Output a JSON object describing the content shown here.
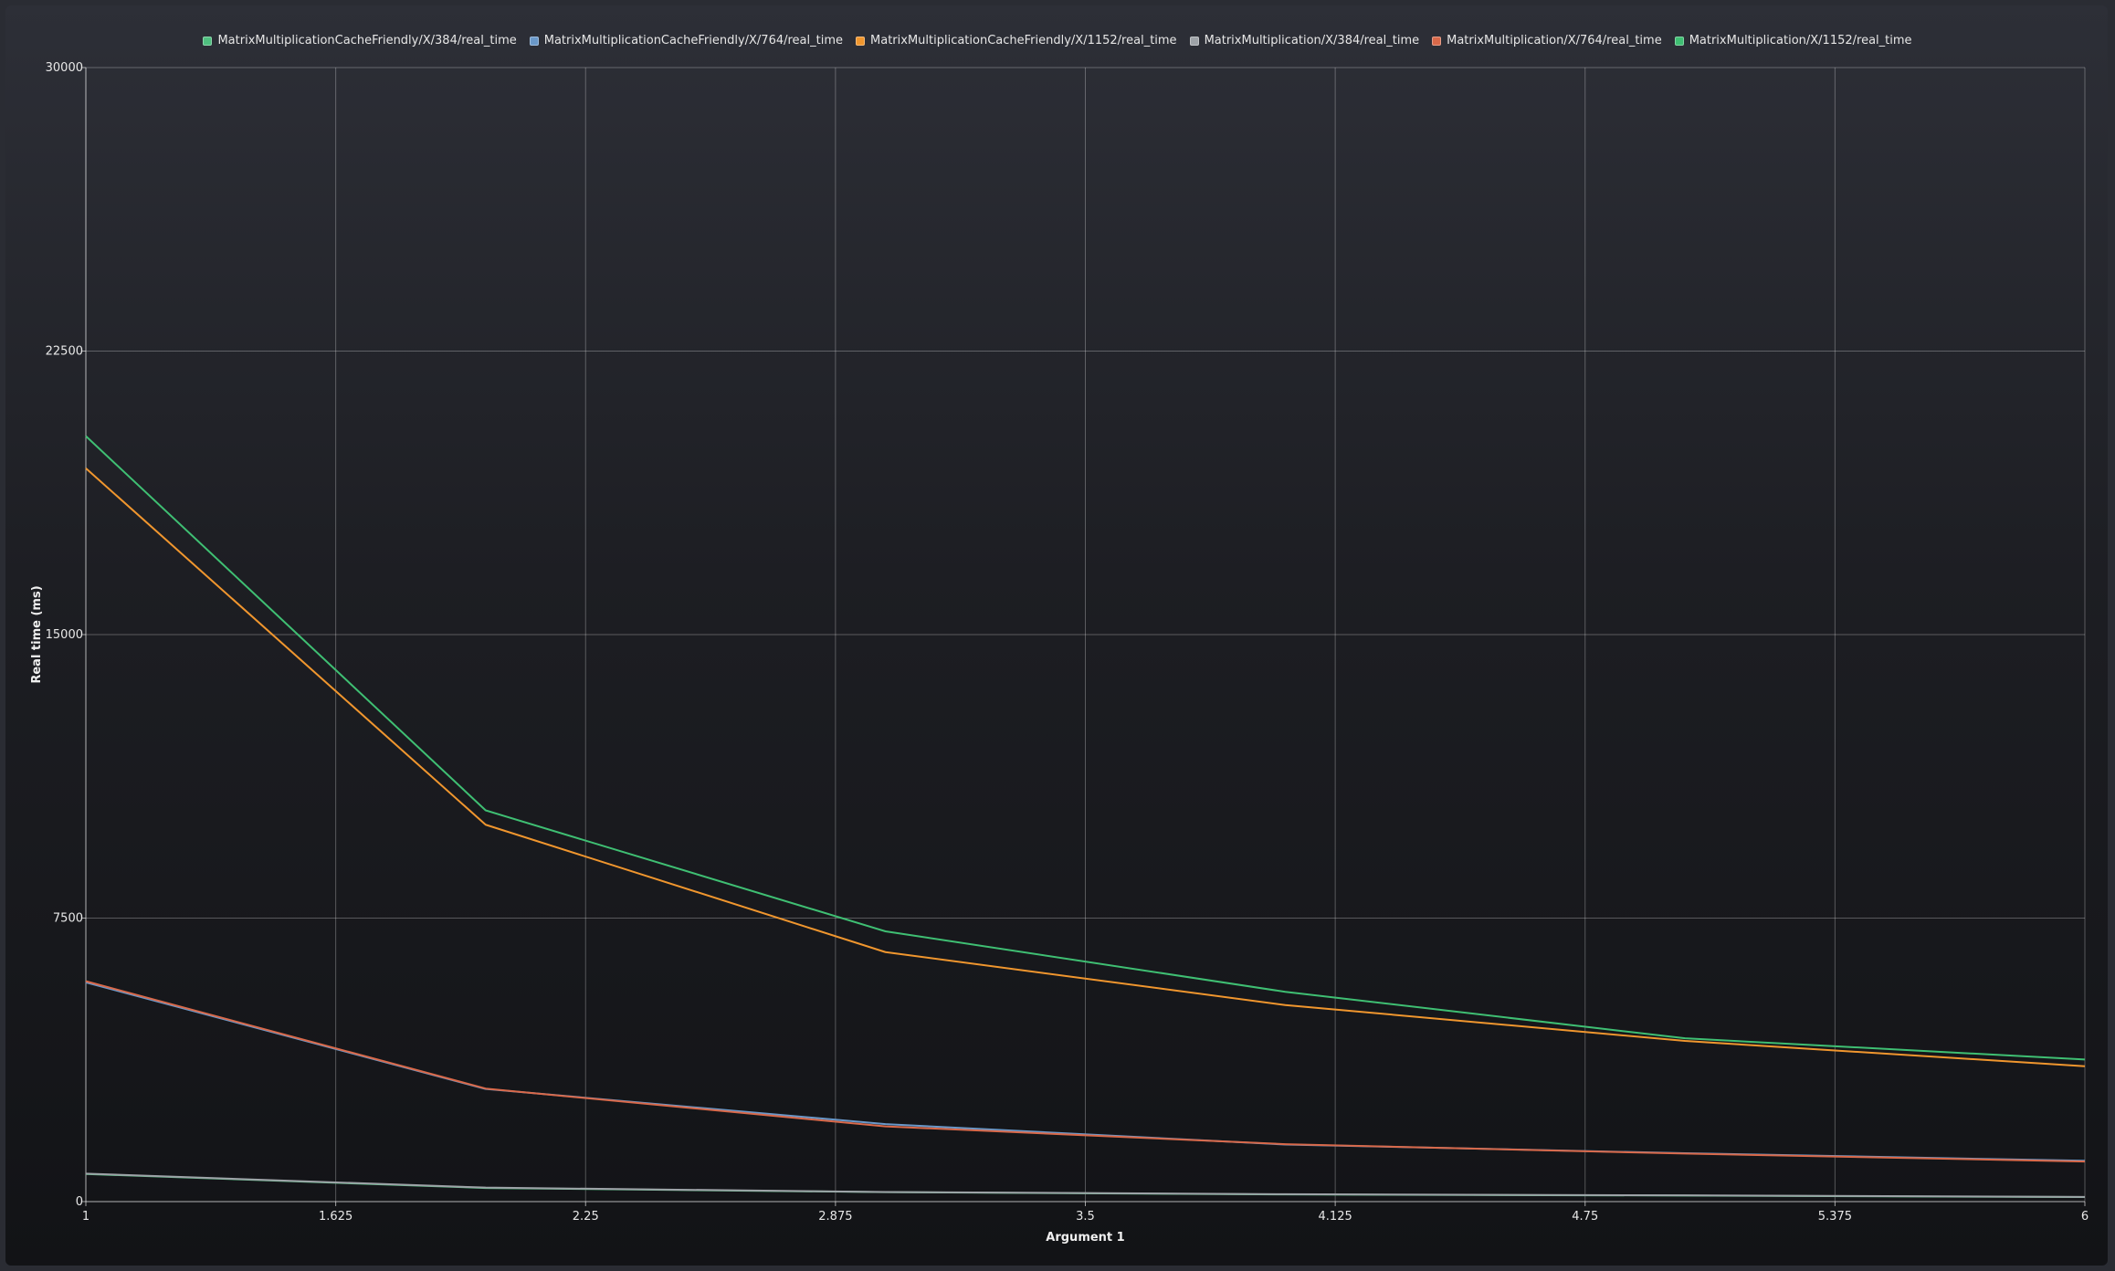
{
  "chart_data": {
    "type": "line",
    "title": "",
    "xlabel": "Argument 1",
    "ylabel": "Real time (ms)",
    "xlim": [
      1,
      6
    ],
    "ylim": [
      0,
      30000
    ],
    "x_ticks": [
      "1",
      "1.625",
      "2.25",
      "2.875",
      "3.5",
      "4.125",
      "4.75",
      "5.375",
      "6"
    ],
    "y_ticks": [
      "0",
      "7500",
      "15000",
      "22500",
      "30000"
    ],
    "grid": true,
    "legend_position": "top-center",
    "x": [
      1,
      2,
      3,
      4,
      5,
      6
    ],
    "series": [
      {
        "name": "MatrixMultiplicationCacheFriendly/X/384/real_time",
        "color": "#4fbf7f",
        "values": [
          730,
          360,
          250,
          190,
          160,
          120
        ]
      },
      {
        "name": "MatrixMultiplicationCacheFriendly/X/764/real_time",
        "color": "#6a98c9",
        "values": [
          5800,
          2980,
          2050,
          1510,
          1280,
          1080
        ]
      },
      {
        "name": "MatrixMultiplicationCacheFriendly/X/1152/real_time",
        "color": "#f0962e",
        "values": [
          19400,
          9970,
          6600,
          5200,
          4250,
          3580
        ]
      },
      {
        "name": "MatrixMultiplication/X/384/real_time",
        "color": "#9ea3a8",
        "values": [
          740,
          370,
          255,
          195,
          165,
          125
        ]
      },
      {
        "name": "MatrixMultiplication/X/764/real_time",
        "color": "#d9694a",
        "values": [
          5830,
          2990,
          1990,
          1520,
          1270,
          1060
        ]
      },
      {
        "name": "MatrixMultiplication/X/1152/real_time",
        "color": "#3fbf73",
        "values": [
          20250,
          10350,
          7150,
          5550,
          4320,
          3760
        ]
      }
    ]
  }
}
